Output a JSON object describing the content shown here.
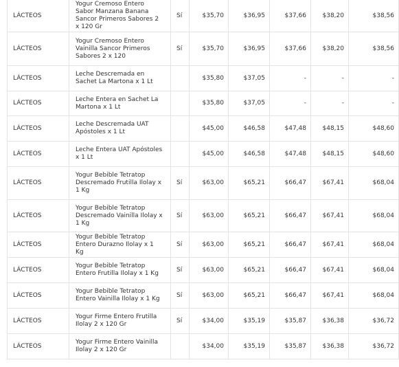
{
  "table": {
    "rows": [
      [
        "LÁCTEOS",
        "Yogur Cremoso Entero Sabor Manzana Banana Sancor Primeros Sabores 2 x 120 Gr",
        "Sí",
        "$35,70",
        "$36,95",
        "$37,66",
        "$38,20",
        "$38,56"
      ],
      [
        "LÁCTEOS",
        "Yogur Cremoso Entero Vainilla Sancor Primeros Sabores 2 x 120",
        "Sí",
        "$35,70",
        "$36,95",
        "$37,66",
        "$38,20",
        "$38,56"
      ],
      [
        "LÁCTEOS",
        "Leche Descremada en Sachet La Martona x 1 Lt",
        null,
        "$35,80",
        "$37,05",
        "-",
        "-",
        "-"
      ],
      [
        "LÁCTEOS",
        "Leche Entera en Sachet La Martona x 1 Lt",
        null,
        "$35,80",
        "$37,05",
        "-",
        "-",
        "-"
      ],
      [
        "LÁCTEOS",
        "Leche Descremada UAT Apóstoles x 1 Lt",
        null,
        "$45,00",
        "$46,58",
        "$47,48",
        "$48,15",
        "$48,60"
      ],
      [
        "LÁCTEOS",
        "Leche Entera UAT Apóstoles x 1 Lt",
        null,
        "$45,00",
        "$46,58",
        "$47,48",
        "$48,15",
        "$48,60"
      ],
      [
        "LÁCTEOS",
        "Yogur Bebible Tetratop Descremado Frutilla Ilolay x 1 Kg",
        "Sí",
        "$63,00",
        "$65,21",
        "$66,47",
        "$67,41",
        "$68,04"
      ],
      [
        "LÁCTEOS",
        "Yogur Bebible Tetratop Descremado Vainilla Ilolay x 1 Kg",
        "Sí",
        "$63,00",
        "$65,21",
        "$66,47",
        "$67,41",
        "$68,04"
      ],
      [
        "LÁCTEOS",
        "Yogur Bebible Tetratop Entero Durazno Ilolay x 1 Kg",
        "Sí",
        "$63,00",
        "$65,21",
        "$66,47",
        "$67,41",
        "$68,04"
      ],
      [
        "LÁCTEOS",
        "Yogur Bebible Tetratop Entero Frutilla Ilolay x 1 Kg",
        "Sí",
        "$63,00",
        "$65,21",
        "$66,47",
        "$67,41",
        "$68,04"
      ],
      [
        "LÁCTEOS",
        "Yogur Bebible Tetratop Entero Vainilla Ilolay x 1 Kg",
        "Sí",
        "$63,00",
        "$65,21",
        "$66,47",
        "$67,41",
        "$68,04"
      ],
      [
        "LÁCTEOS",
        "Yogur Firme Entero Frutilla Ilolay 2 x 120 Gr",
        "Sí",
        "$34,00",
        "$35,19",
        "$35,87",
        "$36,38",
        "$36,72"
      ],
      [
        "LÁCTEOS",
        "Yogur Firme Entero Vainilla Ilolay 2 x 120 Gr",
        null,
        "$34,00",
        "$35,19",
        "$35,87",
        "$36,38",
        "$36,72"
      ]
    ]
  }
}
